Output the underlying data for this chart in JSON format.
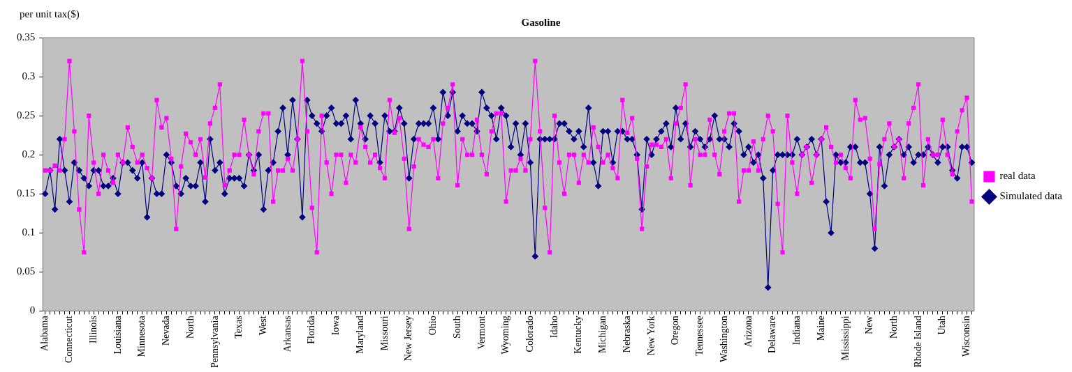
{
  "chart_data": {
    "type": "line",
    "title": "Gasoline",
    "ylabel": "per unit tax($)",
    "categories": [
      "Alabama",
      null,
      null,
      null,
      null,
      "Connecticut",
      null,
      null,
      null,
      null,
      "Illinois",
      null,
      null,
      null,
      null,
      "Louisiana",
      null,
      null,
      null,
      null,
      "Minnesota",
      null,
      null,
      null,
      null,
      "Nevada",
      null,
      null,
      null,
      null,
      "North",
      null,
      null,
      null,
      null,
      "Pennsylvania",
      null,
      null,
      null,
      null,
      "Texas",
      null,
      null,
      null,
      null,
      "West",
      null,
      null,
      null,
      null,
      "Arkansas",
      null,
      null,
      null,
      null,
      "Florida",
      null,
      null,
      null,
      null,
      "Iowa",
      null,
      null,
      null,
      null,
      "Maryland",
      null,
      null,
      null,
      null,
      "Missouri",
      null,
      null,
      null,
      null,
      "New Jersey",
      null,
      null,
      null,
      null,
      "Ohio",
      null,
      null,
      null,
      null,
      "South",
      null,
      null,
      null,
      null,
      "Vermont",
      null,
      null,
      null,
      null,
      "Wyoming",
      null,
      null,
      null,
      null,
      "Colorado",
      null,
      null,
      null,
      null,
      "Idaho",
      null,
      null,
      null,
      null,
      "Kentucky",
      null,
      null,
      null,
      null,
      "Michigan",
      null,
      null,
      null,
      null,
      "Nebraska",
      null,
      null,
      null,
      null,
      "New York",
      null,
      null,
      null,
      null,
      "Oregon",
      null,
      null,
      null,
      null,
      "Tennessee",
      null,
      null,
      null,
      null,
      "Washington",
      null,
      null,
      null,
      null,
      "Arizona",
      null,
      null,
      null,
      null,
      "Delaware",
      null,
      null,
      null,
      null,
      "Indiana",
      null,
      null,
      null,
      null,
      "Maine",
      null,
      null,
      null,
      null,
      "Mississippi",
      null,
      null,
      null,
      null,
      "New",
      null,
      null,
      null,
      null,
      "North",
      null,
      null,
      null,
      null,
      "Rhode Island",
      null,
      null,
      null,
      null,
      "Utah",
      null,
      null,
      null,
      null,
      "Wisconsin",
      null
    ],
    "series": [
      {
        "name": "real data",
        "color": "#ff00ff",
        "marker": "square",
        "values": [
          0.18,
          0.18,
          0.186,
          0.18,
          0.22,
          0.32,
          0.23,
          0.13,
          0.075,
          0.25,
          0.19,
          0.15,
          0.2,
          0.18,
          0.164,
          0.2,
          0.19,
          0.235,
          0.21,
          0.19,
          0.2,
          0.183,
          0.17,
          0.27,
          0.235,
          0.247,
          0.195,
          0.105,
          0.185,
          0.227,
          0.216,
          0.2,
          0.22,
          0.171,
          0.24,
          0.26,
          0.29,
          0.161,
          0.18,
          0.2,
          0.2,
          0.245,
          0.2,
          0.175,
          0.23,
          0.253,
          0.253,
          0.14,
          0.18,
          0.18,
          0.195,
          0.18,
          0.22,
          0.32,
          0.23,
          0.132,
          0.075,
          0.25,
          0.19,
          0.15,
          0.2,
          0.2,
          0.164,
          0.2,
          0.19,
          0.235,
          0.21,
          0.19,
          0.2,
          0.183,
          0.17,
          0.27,
          0.228,
          0.247,
          0.195,
          0.105,
          0.185,
          0.22,
          0.213,
          0.21,
          0.22,
          0.17,
          0.24,
          0.26,
          0.29,
          0.161,
          0.22,
          0.2,
          0.2,
          0.245,
          0.2,
          0.175,
          0.23,
          0.253,
          0.253,
          0.14,
          0.18,
          0.18,
          0.195,
          0.18,
          0.22,
          0.32,
          0.23,
          0.132,
          0.075,
          0.25,
          0.19,
          0.15,
          0.2,
          0.2,
          0.164,
          0.2,
          0.19,
          0.235,
          0.21,
          0.19,
          0.2,
          0.183,
          0.17,
          0.27,
          0.228,
          0.247,
          0.195,
          0.105,
          0.185,
          0.213,
          0.213,
          0.21,
          0.22,
          0.17,
          0.24,
          0.26,
          0.29,
          0.161,
          0.22,
          0.2,
          0.2,
          0.245,
          0.2,
          0.175,
          0.23,
          0.253,
          0.253,
          0.14,
          0.18,
          0.18,
          0.217,
          0.18,
          0.22,
          0.25,
          0.23,
          0.137,
          0.075,
          0.25,
          0.19,
          0.15,
          0.2,
          0.21,
          0.164,
          0.2,
          0.22,
          0.235,
          0.21,
          0.19,
          0.2,
          0.183,
          0.17,
          0.27,
          0.245,
          0.247,
          0.195,
          0.105,
          0.188,
          0.22,
          0.24,
          0.21,
          0.22,
          0.17,
          0.24,
          0.26,
          0.29,
          0.161,
          0.22,
          0.2,
          0.2,
          0.245,
          0.2,
          0.175,
          0.23,
          0.257,
          0.273,
          0.14
        ]
      },
      {
        "name": "Simulated data",
        "color": "#000080",
        "marker": "diamond",
        "values": [
          0.15,
          0.18,
          0.13,
          0.22,
          0.18,
          0.14,
          0.19,
          0.18,
          0.17,
          0.16,
          0.18,
          0.18,
          0.16,
          0.16,
          0.17,
          0.15,
          0.19,
          0.19,
          0.18,
          0.17,
          0.19,
          0.12,
          0.17,
          0.15,
          0.15,
          0.2,
          0.19,
          0.16,
          0.15,
          0.17,
          0.16,
          0.16,
          0.19,
          0.14,
          0.22,
          0.18,
          0.19,
          0.15,
          0.17,
          0.17,
          0.17,
          0.16,
          0.2,
          0.18,
          0.2,
          0.13,
          0.18,
          0.19,
          0.23,
          0.26,
          0.2,
          0.27,
          0.22,
          0.12,
          0.27,
          0.25,
          0.24,
          0.23,
          0.25,
          0.26,
          0.24,
          0.24,
          0.25,
          0.22,
          0.27,
          0.24,
          0.22,
          0.25,
          0.24,
          0.19,
          0.25,
          0.23,
          0.23,
          0.26,
          0.24,
          0.17,
          0.22,
          0.24,
          0.24,
          0.24,
          0.26,
          0.22,
          0.28,
          0.25,
          0.28,
          0.23,
          0.25,
          0.24,
          0.24,
          0.23,
          0.28,
          0.26,
          0.25,
          0.22,
          0.26,
          0.25,
          0.21,
          0.24,
          0.2,
          0.24,
          0.19,
          0.07,
          0.22,
          0.22,
          0.22,
          0.22,
          0.24,
          0.24,
          0.23,
          0.22,
          0.23,
          0.21,
          0.26,
          0.19,
          0.16,
          0.23,
          0.23,
          0.19,
          0.23,
          0.23,
          0.22,
          0.22,
          0.2,
          0.13,
          0.22,
          0.2,
          0.22,
          0.23,
          0.24,
          0.21,
          0.26,
          0.22,
          0.24,
          0.21,
          0.23,
          0.22,
          0.21,
          0.22,
          0.25,
          0.22,
          0.22,
          0.21,
          0.24,
          0.23,
          0.2,
          0.21,
          0.19,
          0.2,
          0.17,
          0.03,
          0.18,
          0.2,
          0.2,
          0.2,
          0.2,
          0.22,
          0.2,
          0.21,
          0.22,
          0.2,
          0.22,
          0.14,
          0.1,
          0.2,
          0.19,
          0.19,
          0.21,
          0.21,
          0.19,
          0.19,
          0.15,
          0.08,
          0.21,
          0.16,
          0.2,
          0.21,
          0.22,
          0.2,
          0.21,
          0.19,
          0.2,
          0.2,
          0.21,
          0.2,
          0.19,
          0.21,
          0.21,
          0.18,
          0.17,
          0.21,
          0.21,
          0.19
        ]
      }
    ],
    "ylim": [
      0,
      0.35
    ],
    "yticks": [
      0,
      0.05,
      0.1,
      0.15,
      0.2,
      0.25,
      0.3,
      0.35
    ],
    "legend": "right",
    "line_style": "solid"
  }
}
